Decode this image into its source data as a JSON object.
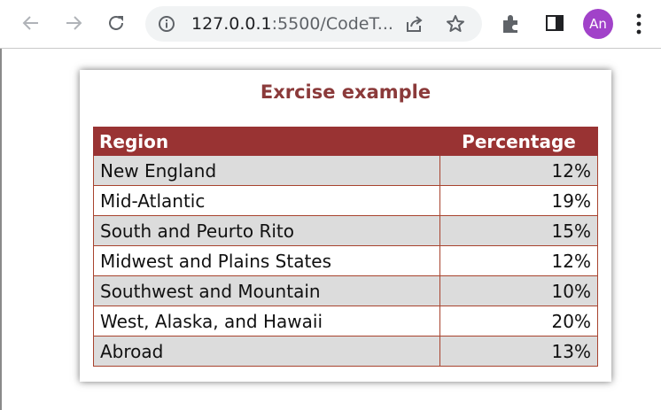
{
  "browser": {
    "url_host": "127.0.0.1",
    "url_rest": ":5500/CodeT...",
    "avatar_initials": "An",
    "avatar_color": "#a142c9"
  },
  "page": {
    "title": "Exrcise example",
    "title_color": "#8b3a3a",
    "header_color": "#993333",
    "table": {
      "headers": [
        "Region",
        "Percentage"
      ],
      "rows": [
        {
          "region": "New England",
          "percentage": "12%"
        },
        {
          "region": "Mid-Atlantic",
          "percentage": "19%"
        },
        {
          "region": "South and Peurto Rito",
          "percentage": "15%"
        },
        {
          "region": "Midwest and Plains States",
          "percentage": "12%"
        },
        {
          "region": "Southwest and Mountain",
          "percentage": "10%"
        },
        {
          "region": "West, Alaska, and Hawaii",
          "percentage": "20%"
        },
        {
          "region": "Abroad",
          "percentage": "13%"
        }
      ]
    }
  }
}
